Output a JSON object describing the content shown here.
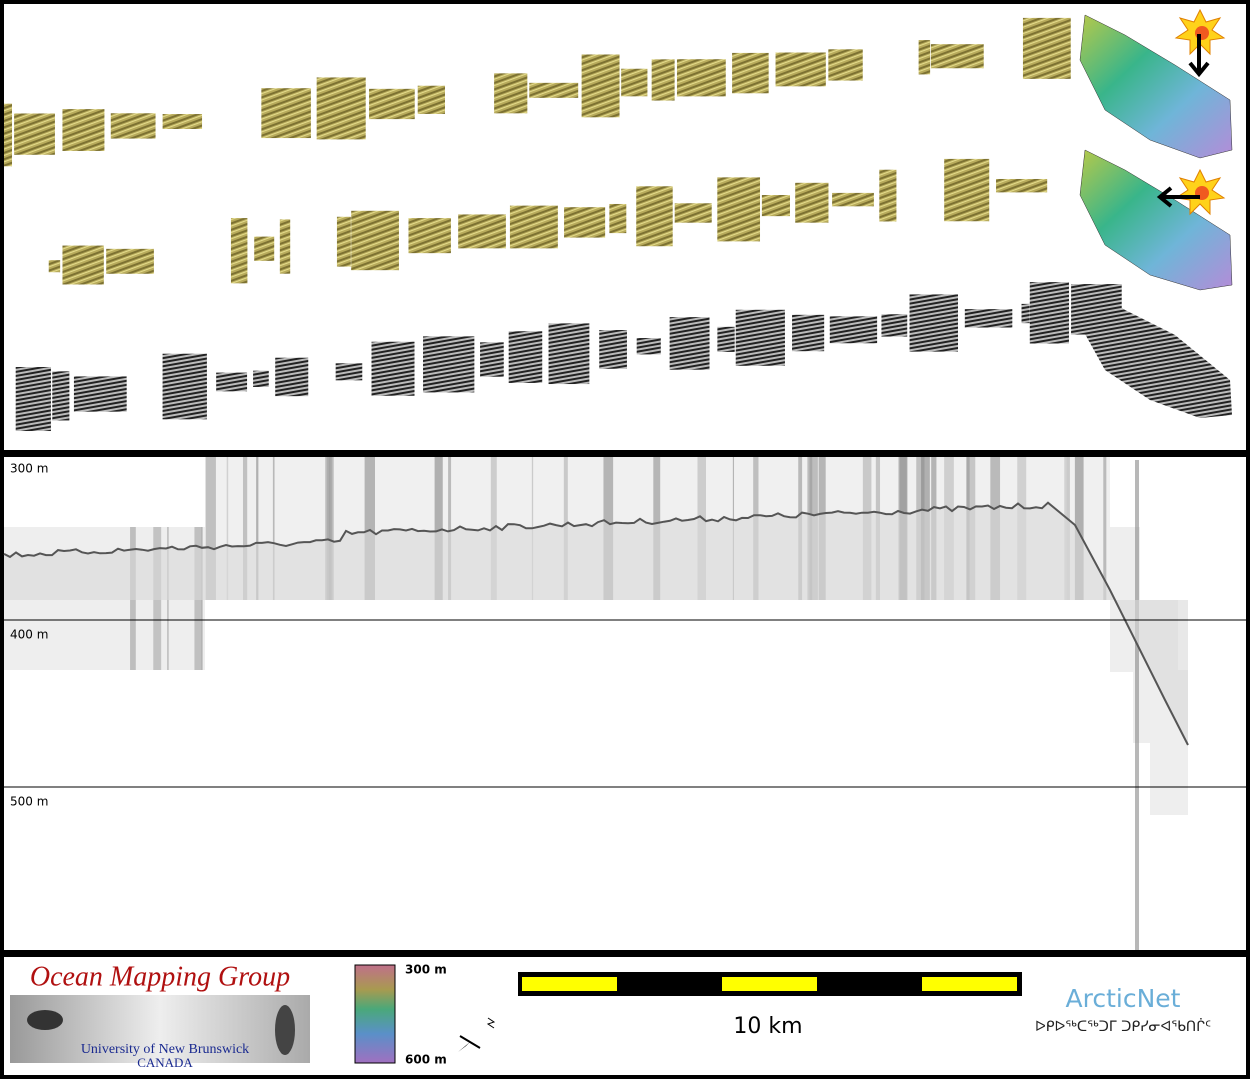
{
  "profile": {
    "depth_labels": [
      "300 m",
      "400 m",
      "500 m"
    ]
  },
  "footer": {
    "logo": {
      "title": "Ocean Mapping Group",
      "university": "University of New Brunswick",
      "country": "CANADA"
    },
    "colorbar": {
      "top_label": "300 m",
      "bottom_label": "600 m"
    },
    "scale_label": "10 km",
    "partner": {
      "name": "ArcticNet",
      "name_syllabics": "ᐅᑭᐅᖅᑕᖅᑐᒥ ᑐᑭᓯᓂᐊᖃᑎᒌᑦ"
    }
  }
}
